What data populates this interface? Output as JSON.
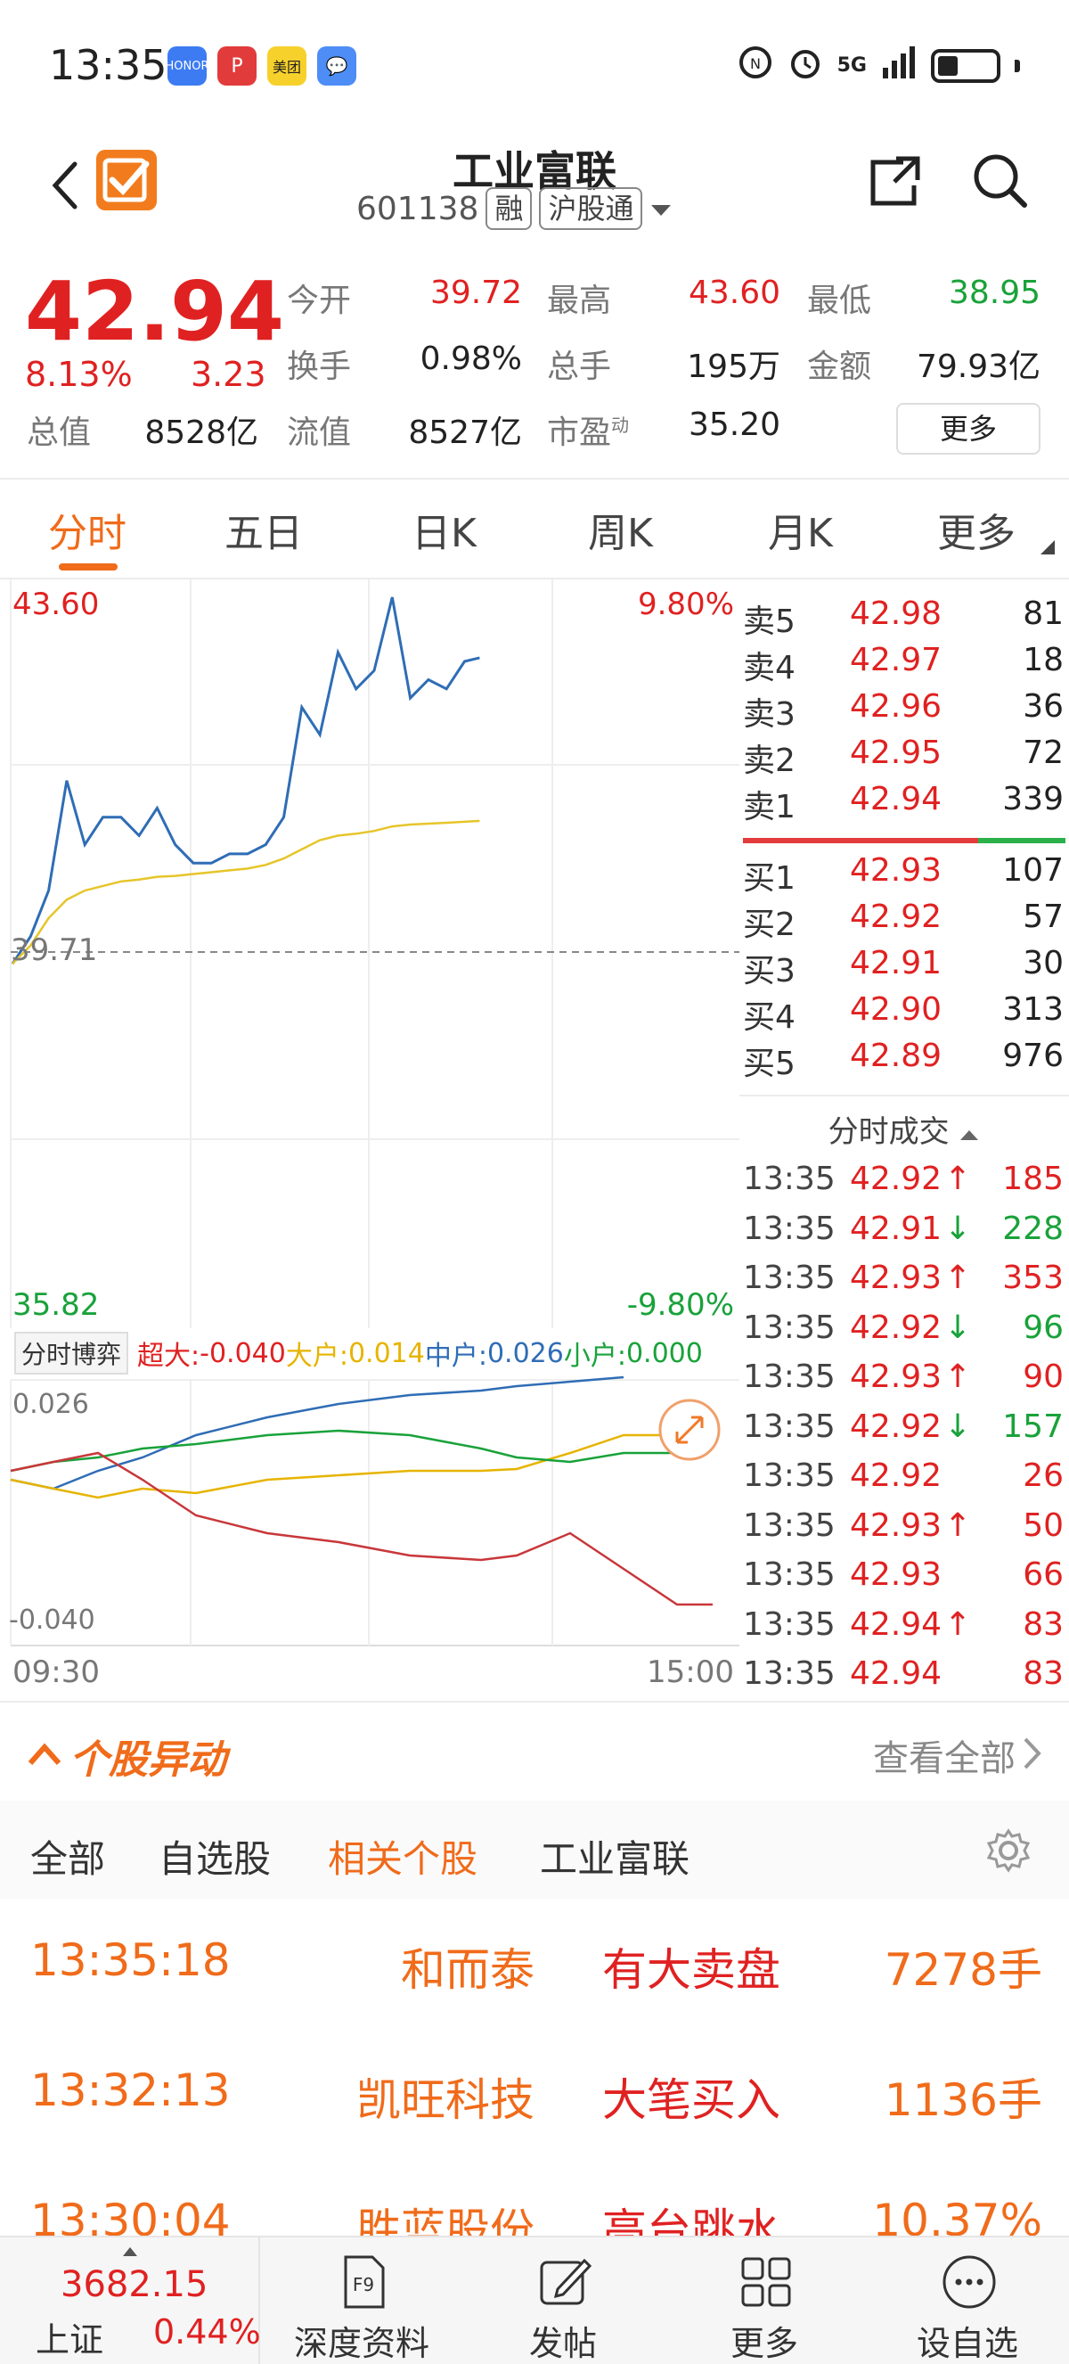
{
  "status_bar": {
    "time": "13:35",
    "apps": [
      "HONOR",
      "P",
      "美团",
      "💬"
    ],
    "network": "5G",
    "icons": [
      "nfc-icon",
      "alarm-icon",
      "signal-icon",
      "battery-icon"
    ]
  },
  "header": {
    "title": "工业富联",
    "code": "601138",
    "tags": [
      "融",
      "沪股通"
    ]
  },
  "quote": {
    "price": "42.94",
    "change_pct": "8.13%",
    "change": "3.23",
    "market_cap_label": "总值",
    "market_cap": "8528亿",
    "fields": [
      {
        "label": "今开",
        "value": "39.72",
        "color": "red"
      },
      {
        "label": "最高",
        "value": "43.60",
        "color": "red"
      },
      {
        "label": "最低",
        "value": "38.95",
        "color": "green"
      },
      {
        "label": "换手",
        "value": "0.98%",
        "color": "dark"
      },
      {
        "label": "总手",
        "value": "195万",
        "color": "dark"
      },
      {
        "label": "金额",
        "value": "79.93亿",
        "color": "dark"
      },
      {
        "label": "流值",
        "value": "8527亿",
        "color": "dark"
      },
      {
        "label": "市盈",
        "sup": "动",
        "value": "35.20",
        "color": "dark"
      }
    ],
    "more_label": "更多"
  },
  "tabs": [
    "分时",
    "五日",
    "日K",
    "周K",
    "月K",
    "更多"
  ],
  "active_tab": 0,
  "chart": {
    "high": "43.60",
    "high_pct": "9.80%",
    "prev_close": "39.71",
    "low": "35.82",
    "low_pct": "-9.80%",
    "game_label": "分时博弈",
    "flows": [
      {
        "label": "超大:",
        "value": "-0.040",
        "color": "#e02121"
      },
      {
        "label": "大户:",
        "value": "0.014",
        "color": "#e6b400"
      },
      {
        "label": "中户:",
        "value": "0.026",
        "color": "#2f6db5"
      },
      {
        "label": "小户:",
        "value": "0.000",
        "color": "#19a23a"
      }
    ],
    "sub_top": "0.026",
    "sub_bottom": "-0.040",
    "time_start": "09:30",
    "time_end": "15:00"
  },
  "chart_data": {
    "type": "line",
    "x": [
      "09:30",
      "09:36",
      "09:42",
      "09:48",
      "09:54",
      "10:00",
      "10:06",
      "10:12",
      "10:18",
      "10:24",
      "10:30",
      "10:36",
      "10:42",
      "10:48",
      "10:54",
      "11:00",
      "11:06",
      "11:12",
      "11:18",
      "11:24",
      "11:30",
      "13:06",
      "13:12",
      "13:18",
      "13:24",
      "13:30",
      "13:35"
    ],
    "series": [
      {
        "values": [
          39.6,
          39.9,
          40.4,
          41.6,
          40.9,
          41.2,
          41.2,
          41.0,
          41.3,
          40.9,
          40.7,
          40.7,
          40.8,
          40.8,
          40.9,
          41.2,
          42.4,
          42.1,
          43.0,
          42.6,
          42.8,
          43.6,
          42.5,
          42.7,
          42.6,
          42.9,
          42.94
        ]
      },
      {
        "values": [
          39.6,
          39.8,
          40.1,
          40.3,
          40.4,
          40.45,
          40.5,
          40.52,
          40.55,
          40.56,
          40.58,
          40.6,
          40.62,
          40.64,
          40.68,
          40.75,
          40.85,
          40.95,
          41.0,
          41.02,
          41.05,
          41.1,
          41.12,
          41.13,
          41.14,
          41.15,
          41.16
        ]
      }
    ],
    "ylim": [
      35.82,
      43.6
    ]
  },
  "order_book": {
    "asks": [
      {
        "label": "卖5",
        "price": "42.98",
        "vol": "81"
      },
      {
        "label": "卖4",
        "price": "42.97",
        "vol": "18"
      },
      {
        "label": "卖3",
        "price": "42.96",
        "vol": "36"
      },
      {
        "label": "卖2",
        "price": "42.95",
        "vol": "72"
      },
      {
        "label": "卖1",
        "price": "42.94",
        "vol": "339"
      }
    ],
    "bids": [
      {
        "label": "买1",
        "price": "42.93",
        "vol": "107"
      },
      {
        "label": "买2",
        "price": "42.92",
        "vol": "57"
      },
      {
        "label": "买3",
        "price": "42.91",
        "vol": "30"
      },
      {
        "label": "买4",
        "price": "42.90",
        "vol": "313"
      },
      {
        "label": "买5",
        "price": "42.89",
        "vol": "976"
      }
    ],
    "ticks_title": "分时成交",
    "ticks": [
      {
        "time": "13:35",
        "price": "42.92",
        "arrow": "↑",
        "vol": "185",
        "dir": "up"
      },
      {
        "time": "13:35",
        "price": "42.91",
        "arrow": "↓",
        "vol": "228",
        "dir": "down"
      },
      {
        "time": "13:35",
        "price": "42.93",
        "arrow": "↑",
        "vol": "353",
        "dir": "up"
      },
      {
        "time": "13:35",
        "price": "42.92",
        "arrow": "↓",
        "vol": "96",
        "dir": "down"
      },
      {
        "time": "13:35",
        "price": "42.93",
        "arrow": "↑",
        "vol": "90",
        "dir": "up"
      },
      {
        "time": "13:35",
        "price": "42.92",
        "arrow": "↓",
        "vol": "157",
        "dir": "down"
      },
      {
        "time": "13:35",
        "price": "42.92",
        "arrow": "",
        "vol": "26",
        "dir": "flat"
      },
      {
        "time": "13:35",
        "price": "42.93",
        "arrow": "↑",
        "vol": "50",
        "dir": "up"
      },
      {
        "time": "13:35",
        "price": "42.93",
        "arrow": "",
        "vol": "66",
        "dir": "flat"
      },
      {
        "time": "13:35",
        "price": "42.94",
        "arrow": "↑",
        "vol": "83",
        "dir": "up"
      },
      {
        "time": "13:35",
        "price": "42.94",
        "arrow": "",
        "vol": "83",
        "dir": "flat"
      }
    ]
  },
  "alerts": {
    "title": "个股异动",
    "view_all": "查看全部",
    "tabs": [
      "全部",
      "自选股",
      "相关个股",
      "工业富联"
    ],
    "active_tab": 2,
    "rows": [
      {
        "time": "13:35:18",
        "name": "和而泰",
        "event": "有大卖盘",
        "amount": "7278手"
      },
      {
        "time": "13:32:13",
        "name": "凯旺科技",
        "event": "大笔买入",
        "amount": "1136手"
      },
      {
        "time": "13:30:04",
        "name": "胜蓝股份",
        "event": "高台跳水",
        "amount": "10.37%"
      }
    ]
  },
  "bottom_nav": {
    "index_value": "3682.15",
    "index_name": "上证",
    "index_pct": "0.44%",
    "items": [
      {
        "label": "深度资料",
        "icon": "f9-icon"
      },
      {
        "label": "发帖",
        "icon": "edit-icon"
      },
      {
        "label": "更多",
        "icon": "grid-icon"
      },
      {
        "label": "设自选",
        "icon": "more-dots-icon"
      }
    ]
  }
}
